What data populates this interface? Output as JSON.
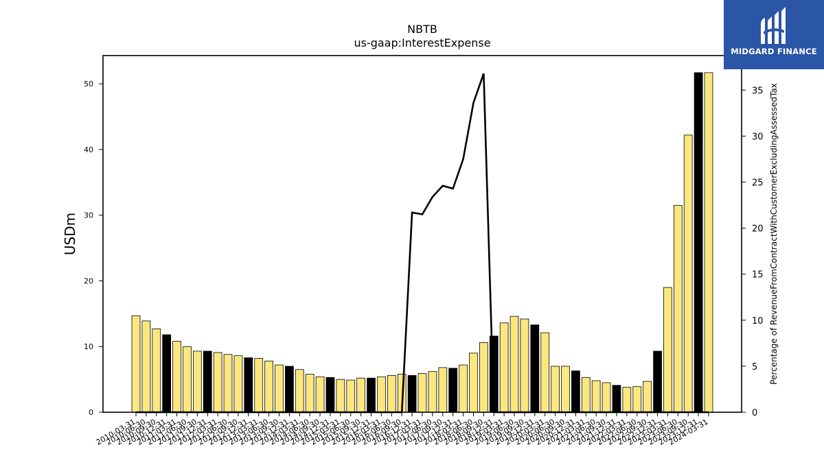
{
  "chart_data": {
    "type": "bar",
    "title": "NBTB",
    "subtitle": "us-gaap:InterestExpense",
    "ylabel": "USDm",
    "ylabel_right": "Percentage of RevenueFromContractWithCustomerExcludingAssessedTax",
    "ylim": [
      0,
      54.3
    ],
    "ylim_right": [
      0,
      38.75
    ],
    "yticks": [
      0,
      10,
      20,
      30,
      40,
      50
    ],
    "yticks_right": [
      0,
      5,
      10,
      15,
      20,
      25,
      30,
      35
    ],
    "categories": [
      "2010-03-31",
      "2010-06-30",
      "2010-09-30",
      "2010-12-31",
      "2011-03-31",
      "2011-06-30",
      "2011-09-30",
      "2011-12-31",
      "2012-03-31",
      "2012-06-30",
      "2012-09-30",
      "2012-12-31",
      "2013-03-31",
      "2013-06-30",
      "2013-09-30",
      "2013-12-31",
      "2014-03-31",
      "2014-06-30",
      "2014-09-30",
      "2014-12-31",
      "2015-03-31",
      "2015-06-30",
      "2015-09-30",
      "2015-12-31",
      "2016-03-31",
      "2016-06-30",
      "2016-09-30",
      "2016-12-31",
      "2017-03-31",
      "2017-06-30",
      "2017-09-30",
      "2017-12-31",
      "2018-03-31",
      "2018-06-30",
      "2018-09-30",
      "2018-12-31",
      "2019-03-31",
      "2019-06-30",
      "2019-09-30",
      "2019-12-31",
      "2020-03-31",
      "2020-06-30",
      "2020-09-30",
      "2020-12-31",
      "2021-03-31",
      "2021-06-30",
      "2021-09-30",
      "2021-12-31",
      "2022-03-31",
      "2022-06-30",
      "2022-09-30",
      "2022-12-31",
      "2023-03-31",
      "2023-06-30",
      "2023-09-30",
      "2023-12-31",
      "2024-03-31"
    ],
    "series": [
      {
        "values": [
          14.7,
          13.9,
          12.7,
          11.8,
          10.8,
          10.0,
          9.3,
          9.3,
          9.1,
          8.8,
          8.6,
          8.3,
          8.2,
          7.8,
          7.2,
          7.0,
          6.5,
          5.8,
          5.4,
          5.3,
          5.0,
          4.9,
          5.2,
          5.2,
          5.4,
          5.6,
          5.8,
          5.6,
          5.9,
          6.2,
          6.8,
          6.7,
          7.2,
          9.0,
          10.6,
          11.6,
          13.6,
          14.6,
          14.2,
          13.3,
          12.1,
          7.0,
          7.0,
          6.3,
          5.3,
          4.8,
          4.5,
          4.1,
          3.8,
          3.9,
          4.7,
          9.3,
          19.0,
          31.5,
          42.2,
          51.7,
          51.7
        ],
        "highlight_color": "#000000"
      },
      {
        "type": "line",
        "values": [
          0,
          0,
          0,
          0,
          0,
          0,
          0,
          0,
          0,
          0,
          0,
          0,
          0,
          0,
          0,
          0,
          0,
          0,
          0,
          0,
          0,
          0,
          0,
          0,
          0,
          0,
          0,
          21.7,
          21.5,
          23.4,
          24.6,
          24.3,
          27.5,
          33.6,
          36.8,
          0,
          0,
          0,
          0,
          0,
          0,
          0,
          0,
          0,
          0,
          0,
          0,
          0,
          0,
          0,
          0,
          0,
          0,
          0,
          0,
          0,
          0
        ]
      }
    ],
    "highlighted_indices": [
      3,
      7,
      11,
      15,
      19,
      23,
      27,
      31,
      35,
      39,
      43,
      47,
      51,
      55
    ],
    "bar_color": "#fbe77e",
    "highlight_color": "#000000",
    "line_color": "#000000",
    "grid": false
  },
  "logo": {
    "text": "MIDGARD FINANCE",
    "background": "#2b55a6"
  }
}
